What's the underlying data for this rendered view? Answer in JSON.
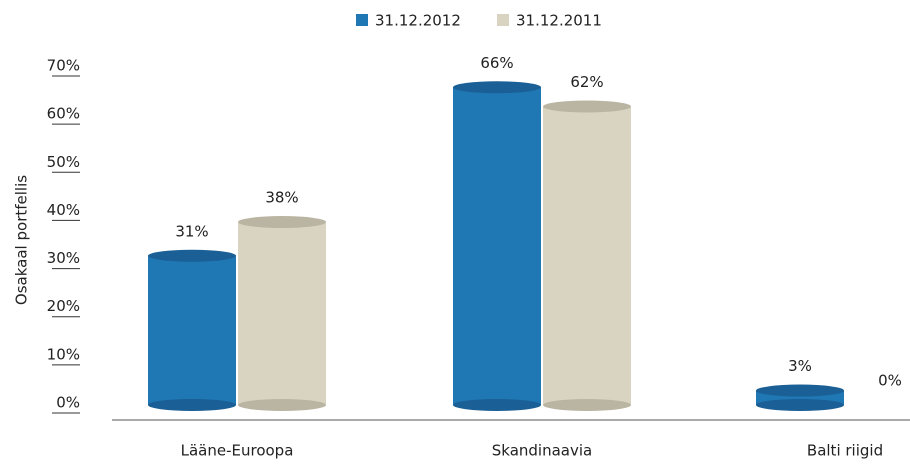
{
  "chart_data": {
    "type": "bar",
    "y_label": "Osakaal portfellis",
    "categories": [
      "Lääne-Euroopa",
      "Skandinaavia",
      "Balti riigid"
    ],
    "series": [
      {
        "name": "31.12.2012",
        "color": "#1f77b4",
        "values": [
          31,
          66,
          3
        ],
        "value_labels": [
          "31%",
          "66%",
          "3%"
        ]
      },
      {
        "name": "31.12.2011",
        "color": "#d9d4c1",
        "values": [
          38,
          62,
          0
        ],
        "value_labels": [
          "38%",
          "62%",
          "0%"
        ]
      }
    ],
    "ylim": [
      0,
      70
    ],
    "yticks": [
      {
        "value": 0,
        "label": "0%"
      },
      {
        "value": 10,
        "label": "10%"
      },
      {
        "value": 20,
        "label": "20%"
      },
      {
        "value": 30,
        "label": "30%"
      },
      {
        "value": 40,
        "label": "40%"
      },
      {
        "value": 50,
        "label": "50%"
      },
      {
        "value": 60,
        "label": "60%"
      },
      {
        "value": 70,
        "label": "70%"
      }
    ],
    "grid": false
  }
}
